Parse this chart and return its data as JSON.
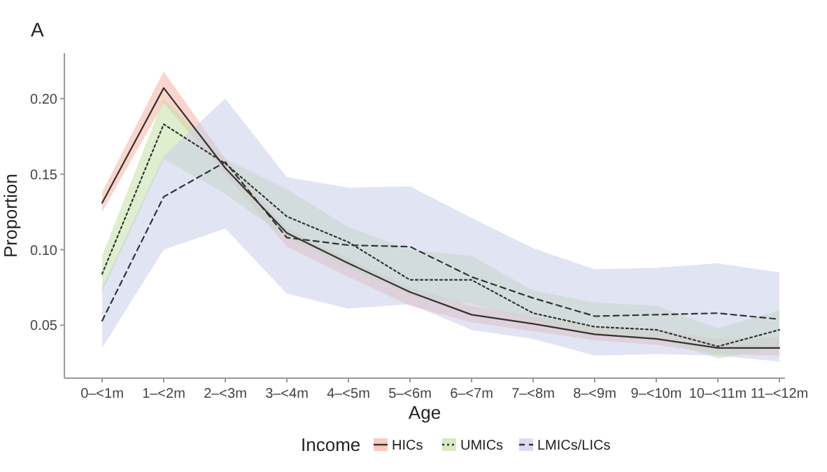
{
  "chart_data": {
    "type": "line",
    "title": "A",
    "xlabel": "Age",
    "ylabel": "Proportion",
    "legend_title": "Income",
    "legend": "bottom",
    "grid": false,
    "colors": [
      "#f7b3a3",
      "#c5e0a5",
      "#c9cde9"
    ],
    "categories": [
      "0‒<1m",
      "1‒<2m",
      "2‒<3m",
      "3‒<4m",
      "4‒<5m",
      "5‒<6m",
      "6‒<7m",
      "7‒<8m",
      "8‒<9m",
      "9‒<10m",
      "10‒<11m",
      "11‒<12m"
    ],
    "ylim": [
      0.015,
      0.23
    ],
    "yticks": [
      {
        "value": 0.05,
        "label": "0.05"
      },
      {
        "value": 0.1,
        "label": "0.10"
      },
      {
        "value": 0.15,
        "label": "0.15"
      },
      {
        "value": 0.2,
        "label": "0.20"
      }
    ],
    "series": [
      {
        "name": "HICs",
        "color": "#333333",
        "line_style": "solid",
        "values": [
          0.131,
          0.207,
          0.154,
          0.111,
          0.091,
          0.072,
          0.057,
          0.051,
          0.044,
          0.041,
          0.035,
          0.035
        ],
        "lower": [
          0.125,
          0.197,
          0.15,
          0.102,
          0.082,
          0.063,
          0.052,
          0.046,
          0.04,
          0.037,
          0.031,
          0.03
        ],
        "upper": [
          0.138,
          0.218,
          0.16,
          0.114,
          0.094,
          0.075,
          0.063,
          0.056,
          0.05,
          0.047,
          0.041,
          0.042
        ]
      },
      {
        "name": "UMICs",
        "color": "#333333",
        "line_style": "dotted",
        "values": [
          0.084,
          0.183,
          0.157,
          0.122,
          0.105,
          0.08,
          0.08,
          0.058,
          0.049,
          0.047,
          0.036,
          0.047
        ],
        "lower": [
          0.072,
          0.16,
          0.137,
          0.108,
          0.088,
          0.07,
          0.064,
          0.053,
          0.043,
          0.042,
          0.028,
          0.035
        ],
        "upper": [
          0.096,
          0.2,
          0.16,
          0.14,
          0.115,
          0.1,
          0.096,
          0.073,
          0.065,
          0.063,
          0.048,
          0.06
        ]
      },
      {
        "name": "LMICs/LICs",
        "color": "#333333",
        "line_style": "dashed",
        "values": [
          0.053,
          0.135,
          0.158,
          0.108,
          0.103,
          0.102,
          0.082,
          0.068,
          0.056,
          0.057,
          0.058,
          0.054
        ],
        "lower": [
          0.035,
          0.1,
          0.114,
          0.071,
          0.061,
          0.064,
          0.047,
          0.041,
          0.03,
          0.031,
          0.03,
          0.026
        ],
        "upper": [
          0.075,
          0.162,
          0.2,
          0.148,
          0.141,
          0.142,
          0.121,
          0.101,
          0.087,
          0.088,
          0.091,
          0.085
        ]
      }
    ]
  }
}
